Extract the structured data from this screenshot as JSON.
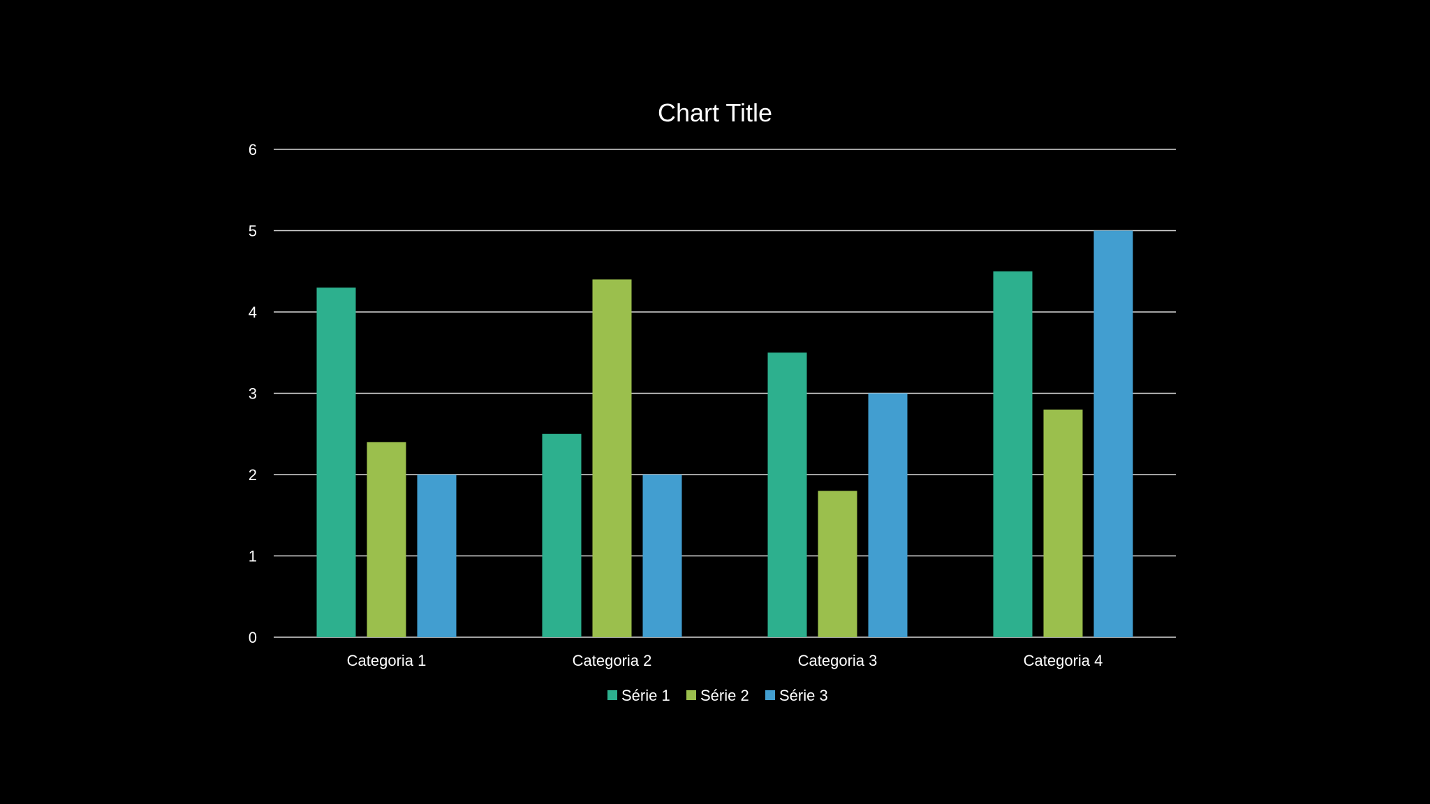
{
  "chart_data": {
    "type": "bar",
    "title": "Chart Title",
    "xlabel": "",
    "ylabel": "",
    "categories": [
      "Categoria 1",
      "Categoria 2",
      "Categoria 3",
      "Categoria 4"
    ],
    "series": [
      {
        "name": "Série 1",
        "values": [
          4.3,
          2.5,
          3.5,
          4.5
        ],
        "color": "#2db08e"
      },
      {
        "name": "Série 2",
        "values": [
          2.4,
          4.4,
          1.8,
          2.8
        ],
        "color": "#9bbf4d"
      },
      {
        "name": "Série 3",
        "values": [
          2,
          2,
          3,
          5
        ],
        "color": "#429ed0"
      }
    ],
    "ylim": [
      0,
      6
    ],
    "yticks": [
      0,
      1,
      2,
      3,
      4,
      5,
      6
    ],
    "grid": true,
    "legend": "bottom",
    "background": "#000000"
  }
}
